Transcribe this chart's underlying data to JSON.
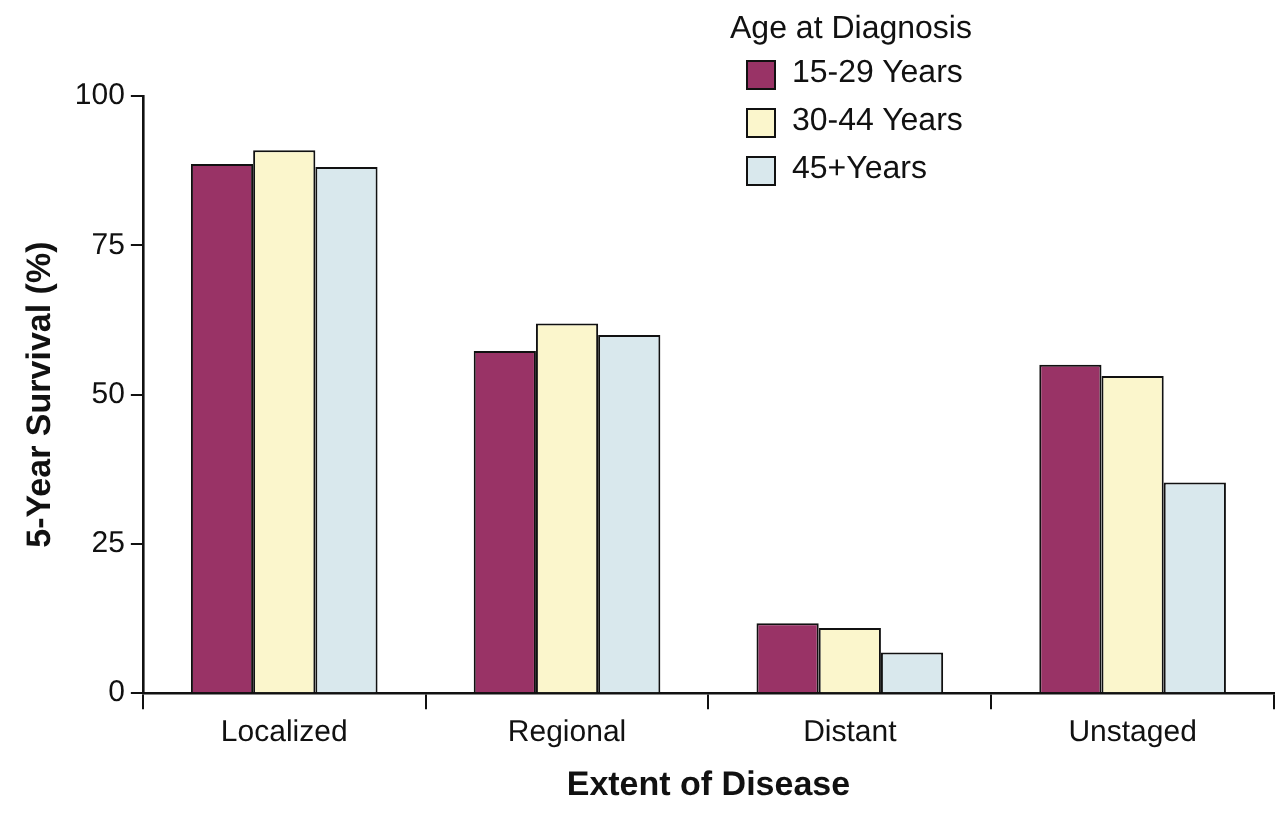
{
  "chart_data": {
    "type": "bar",
    "xlabel": "Extent of Disease",
    "ylabel": "5-Year Survival (%)",
    "legend_title": "Age at Diagnosis",
    "categories": [
      "Localized",
      "Regional",
      "Distant",
      "Unstaged"
    ],
    "series": [
      {
        "name": "15-29 Years",
        "color": "#993366",
        "values": [
          88.6,
          57.3,
          11.7,
          55.0
        ]
      },
      {
        "name": "30-44 Years",
        "color": "#fbf6cc",
        "values": [
          90.9,
          61.9,
          10.9,
          53.1
        ]
      },
      {
        "name": "45+Years",
        "color": "#d9e8ed",
        "values": [
          88.1,
          60.0,
          6.8,
          35.3
        ]
      }
    ],
    "ylim": [
      0,
      100
    ],
    "yticks": [
      0,
      25,
      50,
      75,
      100
    ],
    "grid": false,
    "legend": "top right"
  }
}
